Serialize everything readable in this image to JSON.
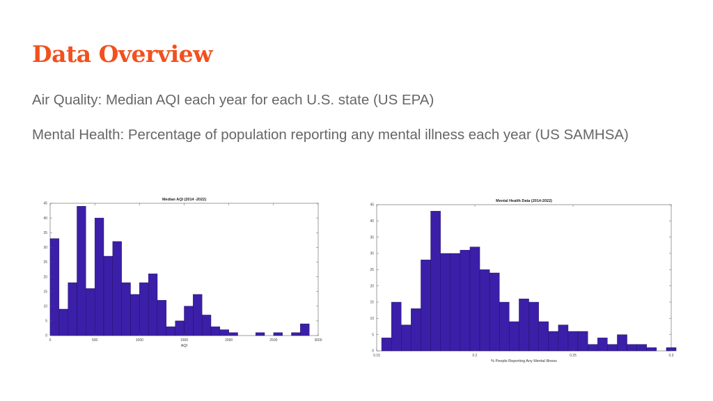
{
  "slide": {
    "title": "Data Overview",
    "line1": "Air Quality: Median AQI each year for each U.S. state (US EPA)",
    "line2": "Mental Health: Percentage of population reporting any mental illness each year (US SAMHSA)"
  },
  "colors": {
    "title": "#f2501e",
    "text": "#666666",
    "bar": "#3b1fa8",
    "bar_edge": "#1a0d55"
  },
  "chart_data": [
    {
      "type": "bar",
      "title": "Median AQI (2014 -2022)",
      "xlabel": "AQI",
      "ylabel": "",
      "xlim": [
        0,
        3000
      ],
      "ylim": [
        0,
        45
      ],
      "xticks": [
        0,
        500,
        1000,
        1500,
        2000,
        2500,
        3000
      ],
      "yticks": [
        0,
        5,
        10,
        15,
        20,
        25,
        30,
        35,
        40,
        45
      ],
      "bin_start": 50,
      "bin_width": 100,
      "values": [
        33,
        9,
        18,
        44,
        16,
        40,
        27,
        32,
        18,
        14,
        18,
        21,
        12,
        3,
        5,
        10,
        14,
        7,
        3,
        2,
        1,
        0,
        0,
        1,
        0,
        1,
        0,
        1,
        4
      ]
    },
    {
      "type": "bar",
      "title": "Mental Health Data (2014-2022)",
      "xlabel": "% People Reporting Any Mental Illness",
      "ylabel": "",
      "xlim": [
        0.15,
        0.3
      ],
      "ylim": [
        0,
        45
      ],
      "xticks": [
        0.15,
        0.2,
        0.25,
        0.3
      ],
      "yticks": [
        0,
        5,
        10,
        15,
        20,
        25,
        30,
        35,
        40,
        45
      ],
      "bin_start": 0.155,
      "bin_width": 0.005,
      "values": [
        4,
        15,
        8,
        13,
        28,
        43,
        30,
        30,
        31,
        32,
        25,
        24,
        15,
        9,
        16,
        15,
        9,
        6,
        8,
        6,
        6,
        2,
        4,
        2,
        5,
        2,
        2,
        1,
        0,
        1
      ]
    }
  ]
}
